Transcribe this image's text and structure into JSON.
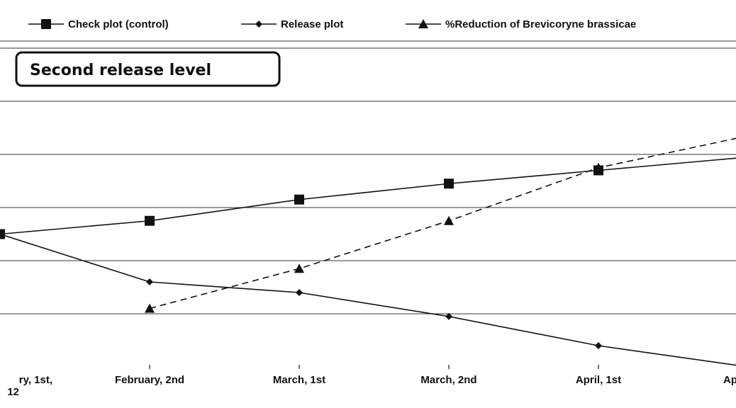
{
  "chart_data": {
    "type": "line",
    "title": "",
    "annotation": "Second release level",
    "xlabel": "",
    "ylabel": "",
    "categories": [
      "ry, 1st,",
      "February, 2nd",
      "March, 1st",
      "March, 2nd",
      "April, 1st",
      "Apr"
    ],
    "category_sublabel": "12",
    "ylim": [
      0,
      6
    ],
    "grid": true,
    "legend_position": "top",
    "series": [
      {
        "name": "Check plot (control)",
        "marker": "square",
        "dash": "solid",
        "values": [
          2.5,
          2.75,
          3.15,
          3.45,
          3.7,
          3.95
        ]
      },
      {
        "name": "Release plot",
        "marker": "diamond",
        "dash": "solid",
        "values": [
          2.5,
          1.6,
          1.4,
          0.95,
          0.4,
          0.0
        ]
      },
      {
        "name": "%Reduction of Brevicoryne brassicae",
        "marker": "triangle",
        "dash": "dashed",
        "values": [
          null,
          1.1,
          1.85,
          2.75,
          3.75,
          4.35
        ]
      }
    ],
    "colors": {
      "line": "#111111",
      "grid": "#333333",
      "background": "#ffffff"
    }
  }
}
